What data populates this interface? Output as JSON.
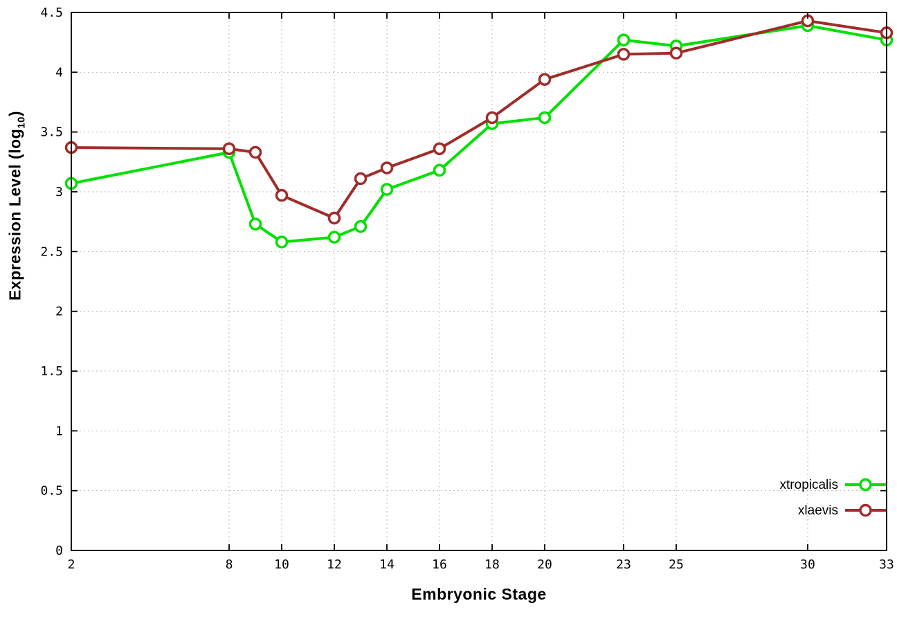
{
  "chart_data": {
    "type": "line",
    "title": "",
    "xlabel": "Embryonic Stage",
    "ylabel": {
      "prefix": "Expression Level (log",
      "sub": "10",
      "suffix": ")"
    },
    "ylabel_flat": "Expression Level (log10)",
    "xlim": [
      2,
      33
    ],
    "ylim": [
      0,
      4.5
    ],
    "grid": true,
    "legend_position": "bottom-right",
    "x": [
      2,
      8,
      9,
      10,
      12,
      13,
      14,
      16,
      18,
      20,
      23,
      25,
      30,
      33
    ],
    "xtick_values": [
      2,
      8,
      10,
      12,
      14,
      16,
      18,
      20,
      23,
      25,
      30,
      33
    ],
    "xtick_labels": [
      "2",
      "8",
      "10",
      "12",
      "14",
      "16",
      "18",
      "20",
      "23",
      "25",
      "30",
      "33"
    ],
    "ytick_values": [
      0,
      0.5,
      1,
      1.5,
      2,
      2.5,
      3,
      3.5,
      4,
      4.5
    ],
    "ytick_labels": [
      "0",
      "0.5",
      "1",
      "1.5",
      "2",
      "2.5",
      "3",
      "3.5",
      "4",
      "4.5"
    ],
    "series": [
      {
        "name": "xtropicalis",
        "color": "#00e000",
        "values": [
          3.07,
          3.33,
          2.73,
          2.58,
          2.62,
          2.71,
          3.02,
          3.18,
          3.57,
          3.62,
          4.27,
          4.22,
          4.39,
          4.27
        ]
      },
      {
        "name": "xlaevis",
        "color": "#a02c2a",
        "values": [
          3.37,
          3.36,
          3.33,
          2.97,
          2.78,
          3.11,
          3.2,
          3.36,
          3.62,
          3.94,
          4.15,
          4.16,
          4.43,
          4.33
        ]
      }
    ]
  },
  "colors": {
    "background": "#ffffff",
    "grid": "#b8b8b8",
    "axis": "#000000",
    "marker_fill": "#ffffff"
  }
}
